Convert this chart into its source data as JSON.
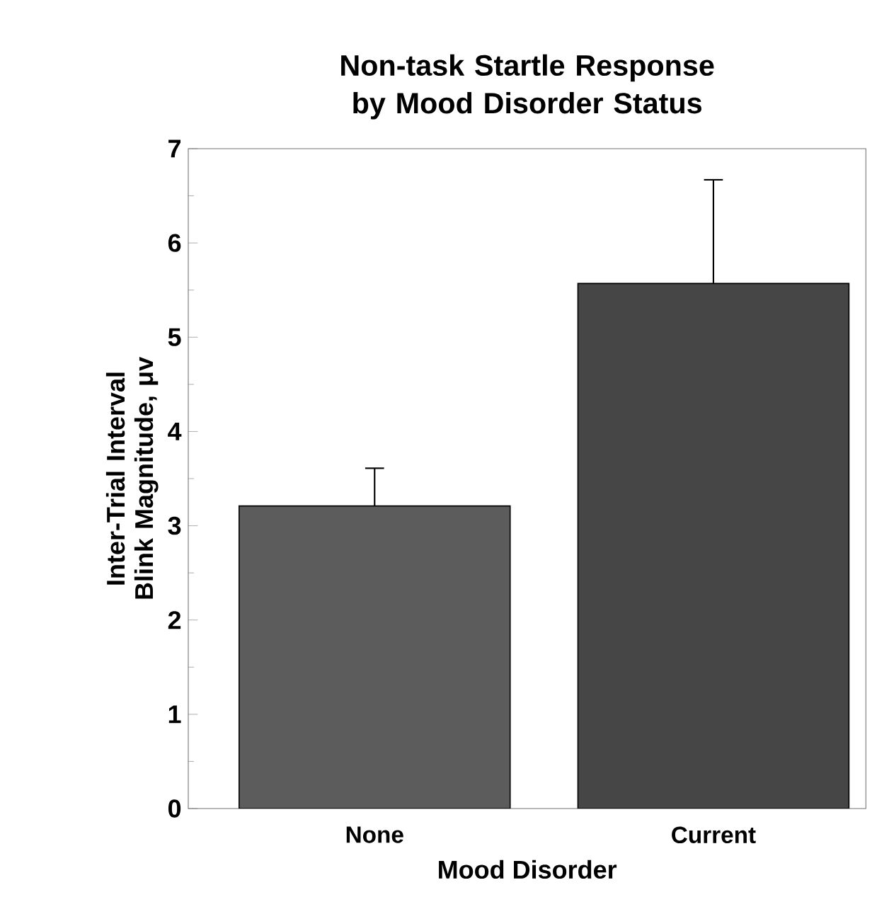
{
  "chart_data": {
    "type": "bar",
    "title": "Non-task Startle Response by Mood Disorder Status",
    "xlabel": "Mood Disorder",
    "ylabel": "Inter-Trial Interval Blink Magnitude, μv",
    "categories": [
      "None",
      "Current"
    ],
    "values": [
      3.21,
      5.57
    ],
    "errors": [
      0.4,
      1.1
    ],
    "colors": [
      "#5c5c5c",
      "#464646"
    ],
    "ylim": [
      0,
      7
    ],
    "yticks": [
      0,
      1,
      2,
      3,
      4,
      5,
      6,
      7
    ],
    "grid": false
  }
}
